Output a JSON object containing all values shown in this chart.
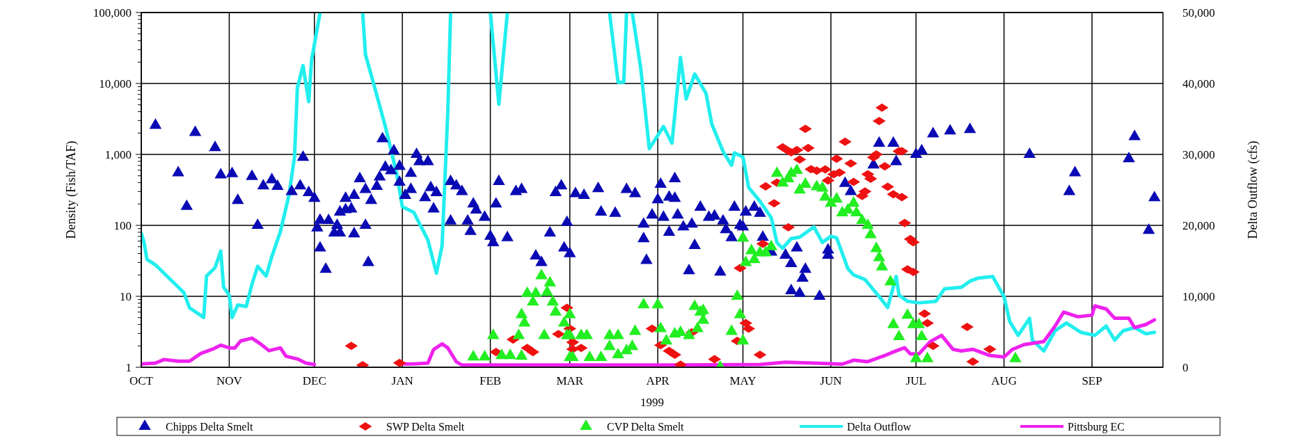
{
  "chart_data": {
    "type": "scatter",
    "xlabel": "1999",
    "ylabel": "Density (Fish/TAF)",
    "y2label": "Delta Outflow (cfs)",
    "xlim": [
      "1998-10-01",
      "1999-09-26"
    ],
    "xticks": [
      {
        "value": "1998-10-01",
        "label": "OCT"
      },
      {
        "value": "1998-11-01",
        "label": "NOV"
      },
      {
        "value": "1998-12-01",
        "label": "DEC"
      },
      {
        "value": "1999-01-01",
        "label": "JAN"
      },
      {
        "value": "1999-02-01",
        "label": "FEB"
      },
      {
        "value": "1999-03-01",
        "label": "MAR"
      },
      {
        "value": "1999-04-01",
        "label": "APR"
      },
      {
        "value": "1999-05-01",
        "label": "MAY"
      },
      {
        "value": "1999-06-01",
        "label": "JUN"
      },
      {
        "value": "1999-07-01",
        "label": "JUL"
      },
      {
        "value": "1999-08-01",
        "label": "AUG"
      },
      {
        "value": "1999-09-01",
        "label": "SEP"
      }
    ],
    "ylim": [
      1,
      100000
    ],
    "yticks": [
      1,
      10,
      100,
      {
        "value": 1000,
        "label": "1,000"
      },
      {
        "value": 10000,
        "label": "10,000"
      },
      {
        "value": 100000,
        "label": "100,000"
      }
    ],
    "y2lim": [
      0,
      50000
    ],
    "y2ticks": [
      0,
      {
        "value": 10000,
        "label": "10,000"
      },
      {
        "value": 20000,
        "label": "20,000"
      },
      {
        "value": 30000,
        "label": "30,000"
      },
      {
        "value": 40000,
        "label": "40,000"
      },
      {
        "value": 50000,
        "label": "50,000"
      }
    ],
    "log": "y",
    "grid": true,
    "legend": "bottom",
    "series": [
      {
        "name": "Chipps Delta Smelt",
        "marker": "triangle",
        "color": "#0a0ab4",
        "x": [
          "1998-10-06",
          "1998-10-14",
          "1998-10-17",
          "1998-10-20",
          "1998-10-27",
          "1998-10-29",
          "1998-11-02",
          "1998-11-04",
          "1998-11-09",
          "1998-11-11",
          "1998-11-13",
          "1998-11-16",
          "1998-11-18",
          "1998-11-23",
          "1998-11-26",
          "1998-11-27",
          "1998-11-29",
          "1998-12-01",
          "1998-12-02",
          "1998-12-03",
          "1998-12-03",
          "1998-12-05",
          "1998-12-06",
          "1998-12-08",
          "1998-12-09",
          "1998-12-10",
          "1998-12-10",
          "1998-12-12",
          "1998-12-12",
          "1998-12-14",
          "1998-12-15",
          "1998-12-15",
          "1998-12-17",
          "1998-12-19",
          "1998-12-19",
          "1998-12-20",
          "1998-12-21",
          "1998-12-23",
          "1998-12-24",
          "1998-12-25",
          "1998-12-26",
          "1998-12-29",
          "1998-12-28",
          "1998-12-31",
          "1998-12-31",
          "1999-01-02",
          "1999-01-04",
          "1999-01-04",
          "1999-01-06",
          "1999-01-07",
          "1999-01-10",
          "1999-01-09",
          "1999-01-11",
          "1999-01-12",
          "1999-01-13",
          "1999-01-18",
          "1999-01-20",
          "1999-01-22",
          "1999-01-18",
          "1999-01-24",
          "1999-01-25",
          "1999-01-26",
          "1999-01-27",
          "1999-01-30",
          "1999-02-01",
          "1999-02-02",
          "1999-02-03",
          "1999-02-04",
          "1999-02-07",
          "1999-02-10",
          "1999-02-12",
          "1999-02-17",
          "1999-02-19",
          "1999-02-22",
          "1999-02-24",
          "1999-02-26",
          "1999-02-28",
          "1999-02-27",
          "1999-03-01",
          "1999-03-03",
          "1999-03-06",
          "1999-03-11",
          "1999-03-12",
          "1999-03-17",
          "1999-03-21",
          "1999-03-24",
          "1999-03-27",
          "1999-03-27",
          "1999-03-28",
          "1999-03-30",
          "1999-04-01",
          "1999-04-02",
          "1999-04-03",
          "1999-04-05",
          "1999-04-07",
          "1999-04-07",
          "1999-04-08",
          "1999-04-05",
          "1999-04-10",
          "1999-04-13",
          "1999-04-14",
          "1999-04-16",
          "1999-04-12",
          "1999-04-19",
          "1999-04-21",
          "1999-04-23",
          "1999-04-24",
          "1999-04-25",
          "1999-04-27",
          "1999-04-28",
          "1999-04-30",
          "1999-05-01",
          "1999-05-02",
          "1999-05-05",
          "1999-05-07",
          "1999-05-08",
          "1999-05-11",
          "1999-05-16",
          "1999-05-18",
          "1999-05-20",
          "1999-05-23",
          "1999-05-22",
          "1999-05-18",
          "1999-05-21",
          "1999-05-28",
          "1999-05-31",
          "1999-05-31",
          "1999-06-06",
          "1999-06-08",
          "1999-06-18",
          "1999-06-23",
          "1999-06-16",
          "1999-06-24",
          "1999-07-01",
          "1999-07-03",
          "1999-07-07",
          "1999-07-13",
          "1999-07-20",
          "1999-08-10",
          "1999-08-26",
          "1999-08-24",
          "1999-09-14",
          "1999-09-16",
          "1999-09-21",
          "1999-09-23"
        ],
        "values": [
          2570,
          550,
          185,
          2040,
          1250,
          515,
          535,
          225,
          490,
          100,
          360,
          440,
          355,
          300,
          360,
          910,
          290,
          240,
          92,
          48,
          118,
          24,
          117,
          78,
          100,
          78,
          154,
          166,
          240,
          170,
          265,
          76,
          455,
          320,
          100,
          30,
          225,
          355,
          480,
          1660,
          660,
          1120,
          590,
          680,
          405,
          265,
          540,
          320,
          1000,
          790,
          790,
          245,
          340,
          170,
          290,
          415,
          360,
          300,
          115,
          115,
          82,
          200,
          165,
          130,
          70,
          57,
          200,
          415,
          67,
          300,
          320,
          37,
          30,
          78,
          290,
          360,
          110,
          48,
          40,
          280,
          265,
          330,
          154,
          148,
          320,
          280,
          104,
          65,
          32,
          140,
          230,
          380,
          130,
          250,
          455,
          240,
          140,
          80,
          95,
          104,
          52,
          180,
          23,
          130,
          135,
          22,
          115,
          87,
          67,
          180,
          100,
          95,
          154,
          180,
          148,
          68,
          42,
          38,
          29,
          48,
          24,
          18,
          12,
          11,
          10,
          38,
          45,
          390,
          300,
          1440,
          1440,
          710,
          790,
          1000,
          1120,
          1950,
          2140,
          2240,
          1000,
          550,
          300,
          870,
          1780,
          85,
          245
        ]
      },
      {
        "name": "SWP Delta Smelt",
        "marker": "diamond",
        "color": "#ee1111",
        "x": [
          "1998-12-14",
          "1998-12-18",
          "1998-12-31",
          "1999-02-03",
          "1999-02-09",
          "1999-02-14",
          "1999-02-16",
          "1999-02-25",
          "1999-02-28",
          "1999-03-01",
          "1999-03-02",
          "1999-03-02",
          "1999-03-05",
          "1999-03-30",
          "1999-04-02",
          "1999-04-05",
          "1999-04-07",
          "1999-04-09",
          "1999-04-13",
          "1999-04-21",
          "1999-04-29",
          "1999-05-02",
          "1999-05-03",
          "1999-05-07",
          "1999-04-30",
          "1999-05-08",
          "1999-05-09",
          "1999-05-12",
          "1999-05-13",
          "1999-05-17",
          "1999-05-15",
          "1999-05-17",
          "1999-05-18",
          "1999-05-20",
          "1999-05-21",
          "1999-05-23",
          "1999-05-24",
          "1999-05-25",
          "1999-05-27",
          "1999-06-06",
          "1999-06-03",
          "1999-06-08",
          "1999-05-30",
          "1999-06-02",
          "1999-05-31",
          "1999-06-09",
          "1999-06-04",
          "1999-06-13",
          "1999-06-12",
          "1999-06-14",
          "1999-06-15",
          "1999-06-16",
          "1999-06-17",
          "1999-06-19",
          "1999-06-18",
          "1999-06-20",
          "1999-06-21",
          "1999-06-23",
          "1999-06-25",
          "1999-06-26",
          "1999-06-26",
          "1999-06-27",
          "1999-06-29",
          "1999-06-30",
          "1999-06-28",
          "1999-06-30",
          "1999-07-04",
          "1999-07-05",
          "1999-07-07",
          "1999-07-19",
          "1999-07-27",
          "1999-07-21"
        ],
        "values": [
          2.0,
          1.07,
          1.15,
          1.64,
          2.46,
          1.87,
          1.64,
          2.94,
          6.9,
          3.5,
          2.25,
          1.8,
          1.87,
          3.5,
          2.05,
          1.7,
          1.5,
          1.09,
          3.1,
          1.3,
          2.35,
          4.2,
          3.5,
          1.5,
          25,
          55,
          355,
          205,
          400,
          94,
          1260,
          1120,
          1070,
          1150,
          850,
          2290,
          1230,
          620,
          590,
          1510,
          870,
          745,
          615,
          525,
          430,
          410,
          555,
          300,
          260,
          525,
          455,
          910,
          1000,
          4560,
          2960,
          680,
          350,
          275,
          1110,
          1110,
          250,
          108,
          64,
          58,
          24,
          22,
          5.7,
          4.2,
          2.0,
          3.7,
          1.8,
          1.2
        ]
      },
      {
        "name": "CVP Delta Smelt",
        "marker": "triangle",
        "color": "#22ee22",
        "x": [
          "1999-01-26",
          "1999-01-30",
          "1999-02-02",
          "1999-02-05",
          "1999-02-08",
          "1999-02-11",
          "1999-02-12",
          "1999-02-12",
          "1999-02-13",
          "1999-02-14",
          "1999-02-16",
          "1999-02-17",
          "1999-02-19",
          "1999-02-20",
          "1999-02-21",
          "1999-02-22",
          "1999-02-23",
          "1999-02-24",
          "1999-02-27",
          "1999-02-28",
          "1999-03-01",
          "1999-03-01",
          "1999-03-01",
          "1999-03-02",
          "1999-03-05",
          "1999-03-07",
          "1999-03-08",
          "1999-03-12",
          "1999-03-15",
          "1999-03-15",
          "1999-03-18",
          "1999-03-18",
          "1999-03-21",
          "1999-03-23",
          "1999-03-24",
          "1999-03-27",
          "1999-04-01",
          "1999-04-02",
          "1999-04-04",
          "1999-04-07",
          "1999-04-09",
          "1999-04-12",
          "1999-04-14",
          "1999-04-16",
          "1999-04-17",
          "1999-04-17",
          "1999-04-15",
          "1999-04-23",
          "1999-04-27",
          "1999-04-29",
          "1999-04-30",
          "1999-05-01",
          "1999-05-01",
          "1999-05-02",
          "1999-05-04",
          "1999-05-05",
          "1999-05-07",
          "1999-05-09",
          "1999-05-11",
          "1999-05-13",
          "1999-05-15",
          "1999-05-17",
          "1999-05-18",
          "1999-05-20",
          "1999-05-21",
          "1999-05-23",
          "1999-05-27",
          "1999-05-29",
          "1999-05-30",
          "1999-06-01",
          "1999-06-03",
          "1999-06-05",
          "1999-06-07",
          "1999-06-09",
          "1999-06-10",
          "1999-06-12",
          "1999-06-14",
          "1999-06-15",
          "1999-06-17",
          "1999-06-18",
          "1999-06-19",
          "1999-06-22",
          "1999-06-23",
          "1999-06-25",
          "1999-06-28",
          "1999-06-30",
          "1999-07-02",
          "1999-07-03",
          "1999-07-01",
          "1999-07-05",
          "1999-08-05"
        ],
        "values": [
          1.4,
          1.4,
          2.8,
          1.46,
          1.46,
          2.8,
          1.43,
          5.5,
          4.2,
          11,
          8.3,
          11,
          19.5,
          2.8,
          11.4,
          15.5,
          8.3,
          6.0,
          4.2,
          2.8,
          5.5,
          1.37,
          2.8,
          1.37,
          2.8,
          2.8,
          1.37,
          1.37,
          2.8,
          1.96,
          2.8,
          1.5,
          1.71,
          1.96,
          3.2,
          7.6,
          7.6,
          3.5,
          2.35,
          2.95,
          3.1,
          2.8,
          7.2,
          6.0,
          4.6,
          6.3,
          3.5,
          1.0,
          3.2,
          10,
          5.5,
          2.35,
          66,
          30,
          44,
          33,
          41,
          41,
          50,
          540,
          395,
          455,
          540,
          595,
          315,
          380,
          350,
          335,
          250,
          205,
          235,
          150,
          165,
          205,
          150,
          117,
          100,
          74,
          47,
          35,
          26,
          16,
          4.0,
          2.7,
          5.4,
          4.0,
          4.0,
          2.7,
          1.32,
          1.32,
          1.32
        ]
      },
      {
        "name": "Delta Outflow",
        "type": "line",
        "axis": "y2",
        "marker": "none",
        "color": "#22eeee",
        "x": [
          "1998-10-01",
          "1998-10-02",
          "1998-10-03",
          "1998-10-06",
          "1998-10-12",
          "1998-10-16",
          "1998-10-18",
          "1998-10-23",
          "1998-10-24",
          "1998-10-27",
          "1998-10-29",
          "1998-10-30",
          "1998-11-01",
          "1998-11-02",
          "1998-11-04",
          "1998-11-07",
          "1998-11-09",
          "1998-11-11",
          "1998-11-14",
          "1998-11-16",
          "1998-11-19",
          "1998-11-22",
          "1998-11-24",
          "1998-11-25",
          "1998-11-27",
          "1998-11-29",
          "1998-11-30",
          "1998-12-03",
          "1998-12-10",
          "1998-12-18",
          "1998-12-19",
          "1998-12-22",
          "1998-12-26",
          "1998-12-30",
          "1999-01-01",
          "1999-01-05",
          "1999-01-10",
          "1999-01-13",
          "1999-01-15",
          "1999-01-17",
          "1999-01-18",
          "1999-01-25",
          "1999-02-01",
          "1999-02-04",
          "1999-02-07",
          "1999-03-01",
          "1999-03-15",
          "1999-03-18",
          "1999-03-20",
          "1999-03-21",
          "1999-03-22",
          "1999-03-23",
          "1999-03-26",
          "1999-03-29",
          "1999-04-03",
          "1999-04-06",
          "1999-04-09",
          "1999-04-11",
          "1999-04-14",
          "1999-04-18",
          "1999-04-20",
          "1999-04-24",
          "1999-04-27",
          "1999-04-28",
          "1999-05-01",
          "1999-05-03",
          "1999-05-07",
          "1999-05-11",
          "1999-05-13",
          "1999-05-15",
          "1999-05-18",
          "1999-05-21",
          "1999-05-26",
          "1999-05-29",
          "1999-06-01",
          "1999-06-03",
          "1999-06-07",
          "1999-06-09",
          "1999-06-13",
          "1999-06-18",
          "1999-06-21",
          "1999-06-24",
          "1999-06-25",
          "1999-06-28",
          "1999-07-02",
          "1999-07-08",
          "1999-07-11",
          "1999-07-17",
          "1999-07-20",
          "1999-07-23",
          "1999-07-28",
          "1999-08-01",
          "1999-08-03",
          "1999-08-06",
          "1999-08-10",
          "1999-08-11",
          "1999-08-15",
          "1999-08-19",
          "1999-08-23",
          "1999-08-28",
          "1999-09-02",
          "1999-09-06",
          "1999-09-09",
          "1999-09-12",
          "1999-09-16",
          "1999-09-20",
          "1999-09-23"
        ],
        "values": [
          18900,
          17550,
          15200,
          14430,
          12090,
          10530,
          8385,
          7020,
          12870,
          14040,
          16380,
          11310,
          10140,
          7020,
          8775,
          8580,
          11700,
          14235,
          12870,
          15600,
          19110,
          24180,
          29640,
          39390,
          42510,
          37440,
          43290,
          50000,
          null,
          50000,
          44070,
          39780,
          33930,
          27300,
          22620,
          21840,
          17940,
          13260,
          17160,
          35880,
          50000,
          null,
          50000,
          37050,
          50000,
          null,
          50000,
          40170,
          40170,
          50000,
          null,
          50000,
          42120,
          30810,
          33930,
          31590,
          43680,
          37830,
          41340,
          38610,
          34320,
          30420,
          28470,
          30225,
          29640,
          25350,
          23400,
          21060,
          17550,
          16770,
          18135,
          18330,
          19780,
          17600,
          18470,
          18250,
          13890,
          13010,
          12360,
          9960,
          8430,
          12800,
          10170,
          9300,
          9080,
          9300,
          11050,
          11270,
          12140,
          12580,
          12800,
          9960,
          6460,
          4500,
          6900,
          3840,
          2310,
          5150,
          6240,
          4930,
          4500,
          5810,
          3840,
          5150,
          5590,
          4720,
          4930
        ]
      },
      {
        "name": "Pittsburg EC",
        "type": "line",
        "axis": "y2",
        "marker": "none",
        "color": "#ee22ee",
        "x": [
          "1998-10-01",
          "1998-10-06",
          "1998-10-09",
          "1998-10-14",
          "1998-10-18",
          "1998-10-22",
          "1998-10-26",
          "1998-10-29",
          "1998-11-01",
          "1998-11-03",
          "1998-11-05",
          "1998-11-09",
          "1998-11-12",
          "1998-11-15",
          "1998-11-19",
          "1998-11-21",
          "1998-11-25",
          "1998-11-28",
          "1998-12-01",
          "1998-12-15",
          "1998-12-31",
          "1999-01-05",
          "1999-01-10",
          "1999-01-12",
          "1999-01-15",
          "1999-01-17",
          "1999-01-20",
          "1999-01-22",
          "1999-03-01",
          "1999-04-08",
          "1999-05-07",
          "1999-05-16",
          "1999-05-26",
          "1999-06-05",
          "1999-06-09",
          "1999-06-14",
          "1999-06-20",
          "1999-06-24",
          "1999-06-27",
          "1999-06-29",
          "1999-07-02",
          "1999-07-06",
          "1999-07-10",
          "1999-07-14",
          "1999-07-17",
          "1999-07-21",
          "1999-07-27",
          "1999-08-01",
          "1999-08-04",
          "1999-08-08",
          "1999-08-15",
          "1999-08-19",
          "1999-08-22",
          "1999-08-27",
          "1999-09-01",
          "1999-09-02",
          "1999-09-06",
          "1999-09-09",
          "1999-09-14",
          "1999-09-16",
          "1999-09-20",
          "1999-09-23"
        ],
        "values": [
          470,
          585,
          1090,
          860,
          860,
          1950,
          2535,
          3120,
          2730,
          2730,
          3700,
          4100,
          3300,
          2340,
          2730,
          1560,
          1170,
          585,
          390,
          null,
          470,
          470,
          585,
          2500,
          3300,
          2730,
          780,
          310,
          310,
          310,
          390,
          700,
          585,
          440,
          1000,
          790,
          1660,
          2310,
          2750,
          1880,
          1880,
          3620,
          4500,
          2530,
          2310,
          2530,
          1660,
          1440,
          2530,
          3190,
          3620,
          5810,
          7770,
          7120,
          7340,
          8650,
          8210,
          6900,
          6900,
          5590,
          6030,
          6680
        ]
      }
    ]
  }
}
